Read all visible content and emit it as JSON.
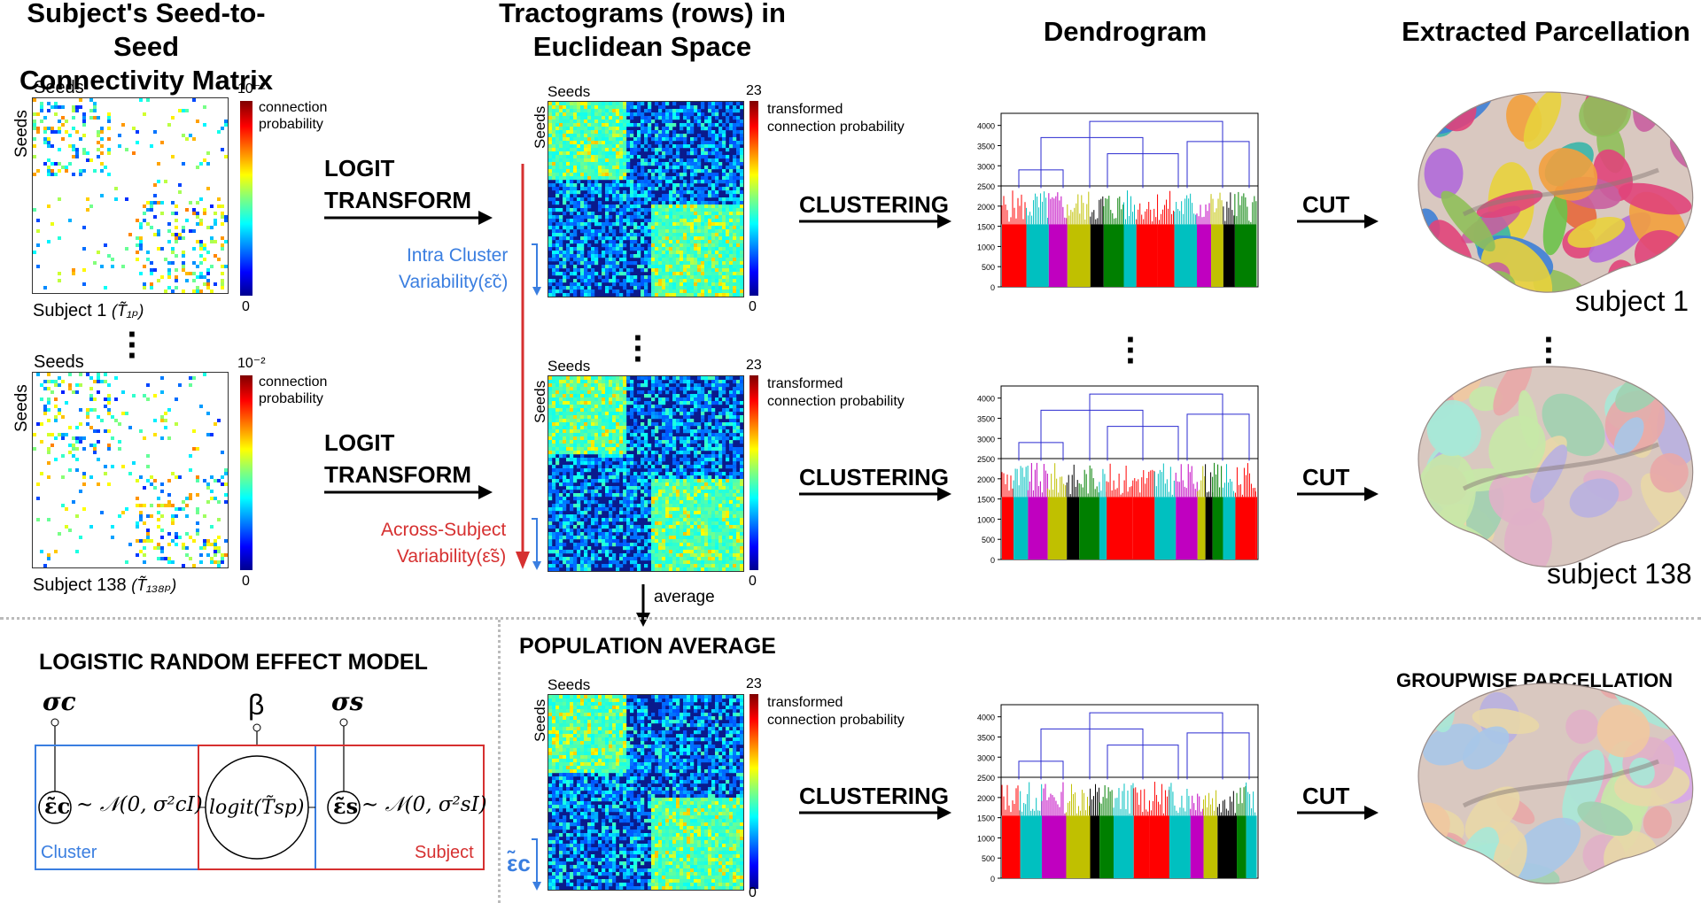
{
  "headers": {
    "col1": "Subject's Seed-to-Seed\nConnectivity Matrix",
    "col2": "Tractograms (rows) in\nEuclidean Space",
    "col3": "Dendrogram",
    "col4": "Extracted Parcellation"
  },
  "seeds_label": "Seeds",
  "colorbar": {
    "prob_top": "10⁻²",
    "prob_bottom": "0",
    "prob_label": "connection\nprobability",
    "tprob_top": "23",
    "tprob_bottom": "0",
    "tprob_label": "transformed\nconnection probability"
  },
  "subject1_caption": "Subject 1",
  "subject1_math": "(T̃₁ₚ)",
  "subject138_caption": "Subject 138",
  "subject138_math": "(T̃₁₃₈ₚ)",
  "logit_transform": "LOGIT\nTRANSFORM",
  "clustering": "CLUSTERING",
  "cut": "CUT",
  "intra_cluster": "Intra Cluster\nVariability(ε̃c)",
  "across_subject": "Across-Subject\nVariability(ε̃s)",
  "average": "average",
  "population_average": "POPULATION AVERAGE",
  "epsilon_c": "ε̃c",
  "subject1_brain": "subject 1",
  "subject138_brain": "subject 138",
  "groupwise": "GROUPWISE PARCELLATION",
  "model": {
    "title": "LOGISTIC RANDOM EFFECT MODEL",
    "sigma_c": "σc",
    "beta": "β",
    "sigma_s": "σs",
    "left_expr": "∼ 𝒩(0, σ²cI)",
    "right_expr": "∼ 𝒩(0, σ²sI)",
    "center": "logit(T̃sp)",
    "eps_c": "ε̃c",
    "eps_s": "ε̃s",
    "cluster": "Cluster",
    "subject": "Subject"
  },
  "dendrogram_ticks": [
    "4000",
    "3500",
    "3000",
    "2500",
    "2000",
    "1500",
    "1000",
    "500",
    "0"
  ],
  "colors": {
    "blue_accent": "#3a7ee0",
    "red_accent": "#d63030",
    "matrix_bg": "#0a1a8c"
  },
  "dots": "⋮"
}
